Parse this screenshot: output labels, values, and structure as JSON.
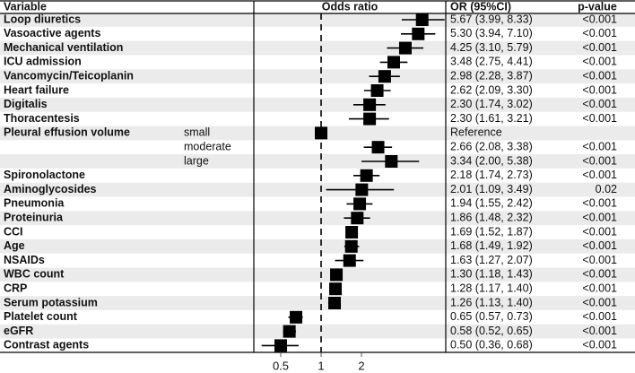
{
  "chart_data": {
    "type": "forest",
    "columns": {
      "variable": "Variable",
      "plot": "Odds ratio",
      "or": "OR (95%CI)",
      "p": "p-value"
    },
    "categories": [
      "Loop diuretics",
      "Vasoactive agents",
      "Mechanical ventilation",
      "ICU admission",
      "Vancomycin/Teicoplanin",
      "Heart failure",
      "Digitalis",
      "Thoracentesis",
      "Pleural effusion volume",
      null,
      null,
      "Spironolactone",
      "Aminoglycosides",
      "Pneumonia",
      "Proteinuria",
      "CCI",
      "Age",
      "NSAIDs",
      "WBC count",
      "CRP",
      "Serum potassium",
      "Platelet count",
      "eGFR",
      "Contrast agents"
    ],
    "subgroups": [
      null,
      null,
      null,
      null,
      null,
      null,
      null,
      null,
      "small",
      "moderate",
      "large",
      null,
      null,
      null,
      null,
      null,
      null,
      null,
      null,
      null,
      null,
      null,
      null,
      null
    ],
    "values": [
      5.67,
      5.3,
      4.25,
      3.48,
      2.98,
      2.62,
      2.3,
      2.3,
      1,
      2.66,
      3.34,
      2.18,
      2.01,
      1.94,
      1.86,
      1.69,
      1.68,
      1.63,
      1.3,
      1.28,
      1.26,
      0.65,
      0.58,
      0.5
    ],
    "lower": [
      3.99,
      3.94,
      3.1,
      2.75,
      2.28,
      2.09,
      1.74,
      1.61,
      null,
      2.08,
      2.0,
      1.74,
      1.09,
      1.55,
      1.48,
      1.52,
      1.49,
      1.27,
      1.18,
      1.17,
      1.13,
      0.57,
      0.52,
      0.36
    ],
    "upper": [
      8.33,
      7.1,
      5.79,
      4.41,
      3.87,
      3.3,
      3.02,
      3.21,
      null,
      3.38,
      5.38,
      2.73,
      3.49,
      2.42,
      2.32,
      1.87,
      1.92,
      2.07,
      1.43,
      1.4,
      1.4,
      0.73,
      0.65,
      0.68
    ],
    "value_labels": [
      "5.67 (3.99, 8.33)",
      "5.30 (3.94, 7.10)",
      "4.25 (3.10, 5.79)",
      "3.48 (2.75, 4.41)",
      "2.98 (2.28, 3.87)",
      "2.62 (2.09, 3.30)",
      "2.30 (1.74, 3.02)",
      "2.30 (1.61, 3.21)",
      "Reference",
      "2.66 (2.08, 3.38)",
      "3.34 (2.00, 5.38)",
      "2.18 (1.74, 2.73)",
      "2.01 (1.09, 3.49)",
      "1.94 (1.55, 2.42)",
      "1.86 (1.48, 2.32)",
      "1.69 (1.52, 1.87)",
      "1.68 (1.49, 1.92)",
      "1.63 (1.27, 2.07)",
      "1.30 (1.18, 1.43)",
      "1.28 (1.17, 1.40)",
      "1.26 (1.13, 1.40)",
      "0.65 (0.57, 0.73)",
      "0.58 (0.52, 0.65)",
      "0.50 (0.36, 0.68)"
    ],
    "p_values": [
      "<0.001",
      "<0.001",
      "<0.001",
      "<0.001",
      "<0.001",
      "<0.001",
      "<0.001",
      "<0.001",
      null,
      "<0.001",
      "<0.001",
      "<0.001",
      "0.02",
      "<0.001",
      "<0.001",
      "<0.001",
      "<0.001",
      "<0.001",
      "<0.001",
      "<0.001",
      "<0.001",
      "<0.001",
      "<0.001",
      "<0.001"
    ],
    "color": "#000000",
    "xscale": "log",
    "xlim": [
      0.315,
      8.5
    ],
    "xticks": [
      0.5,
      1,
      2
    ],
    "reference_line": 1
  }
}
